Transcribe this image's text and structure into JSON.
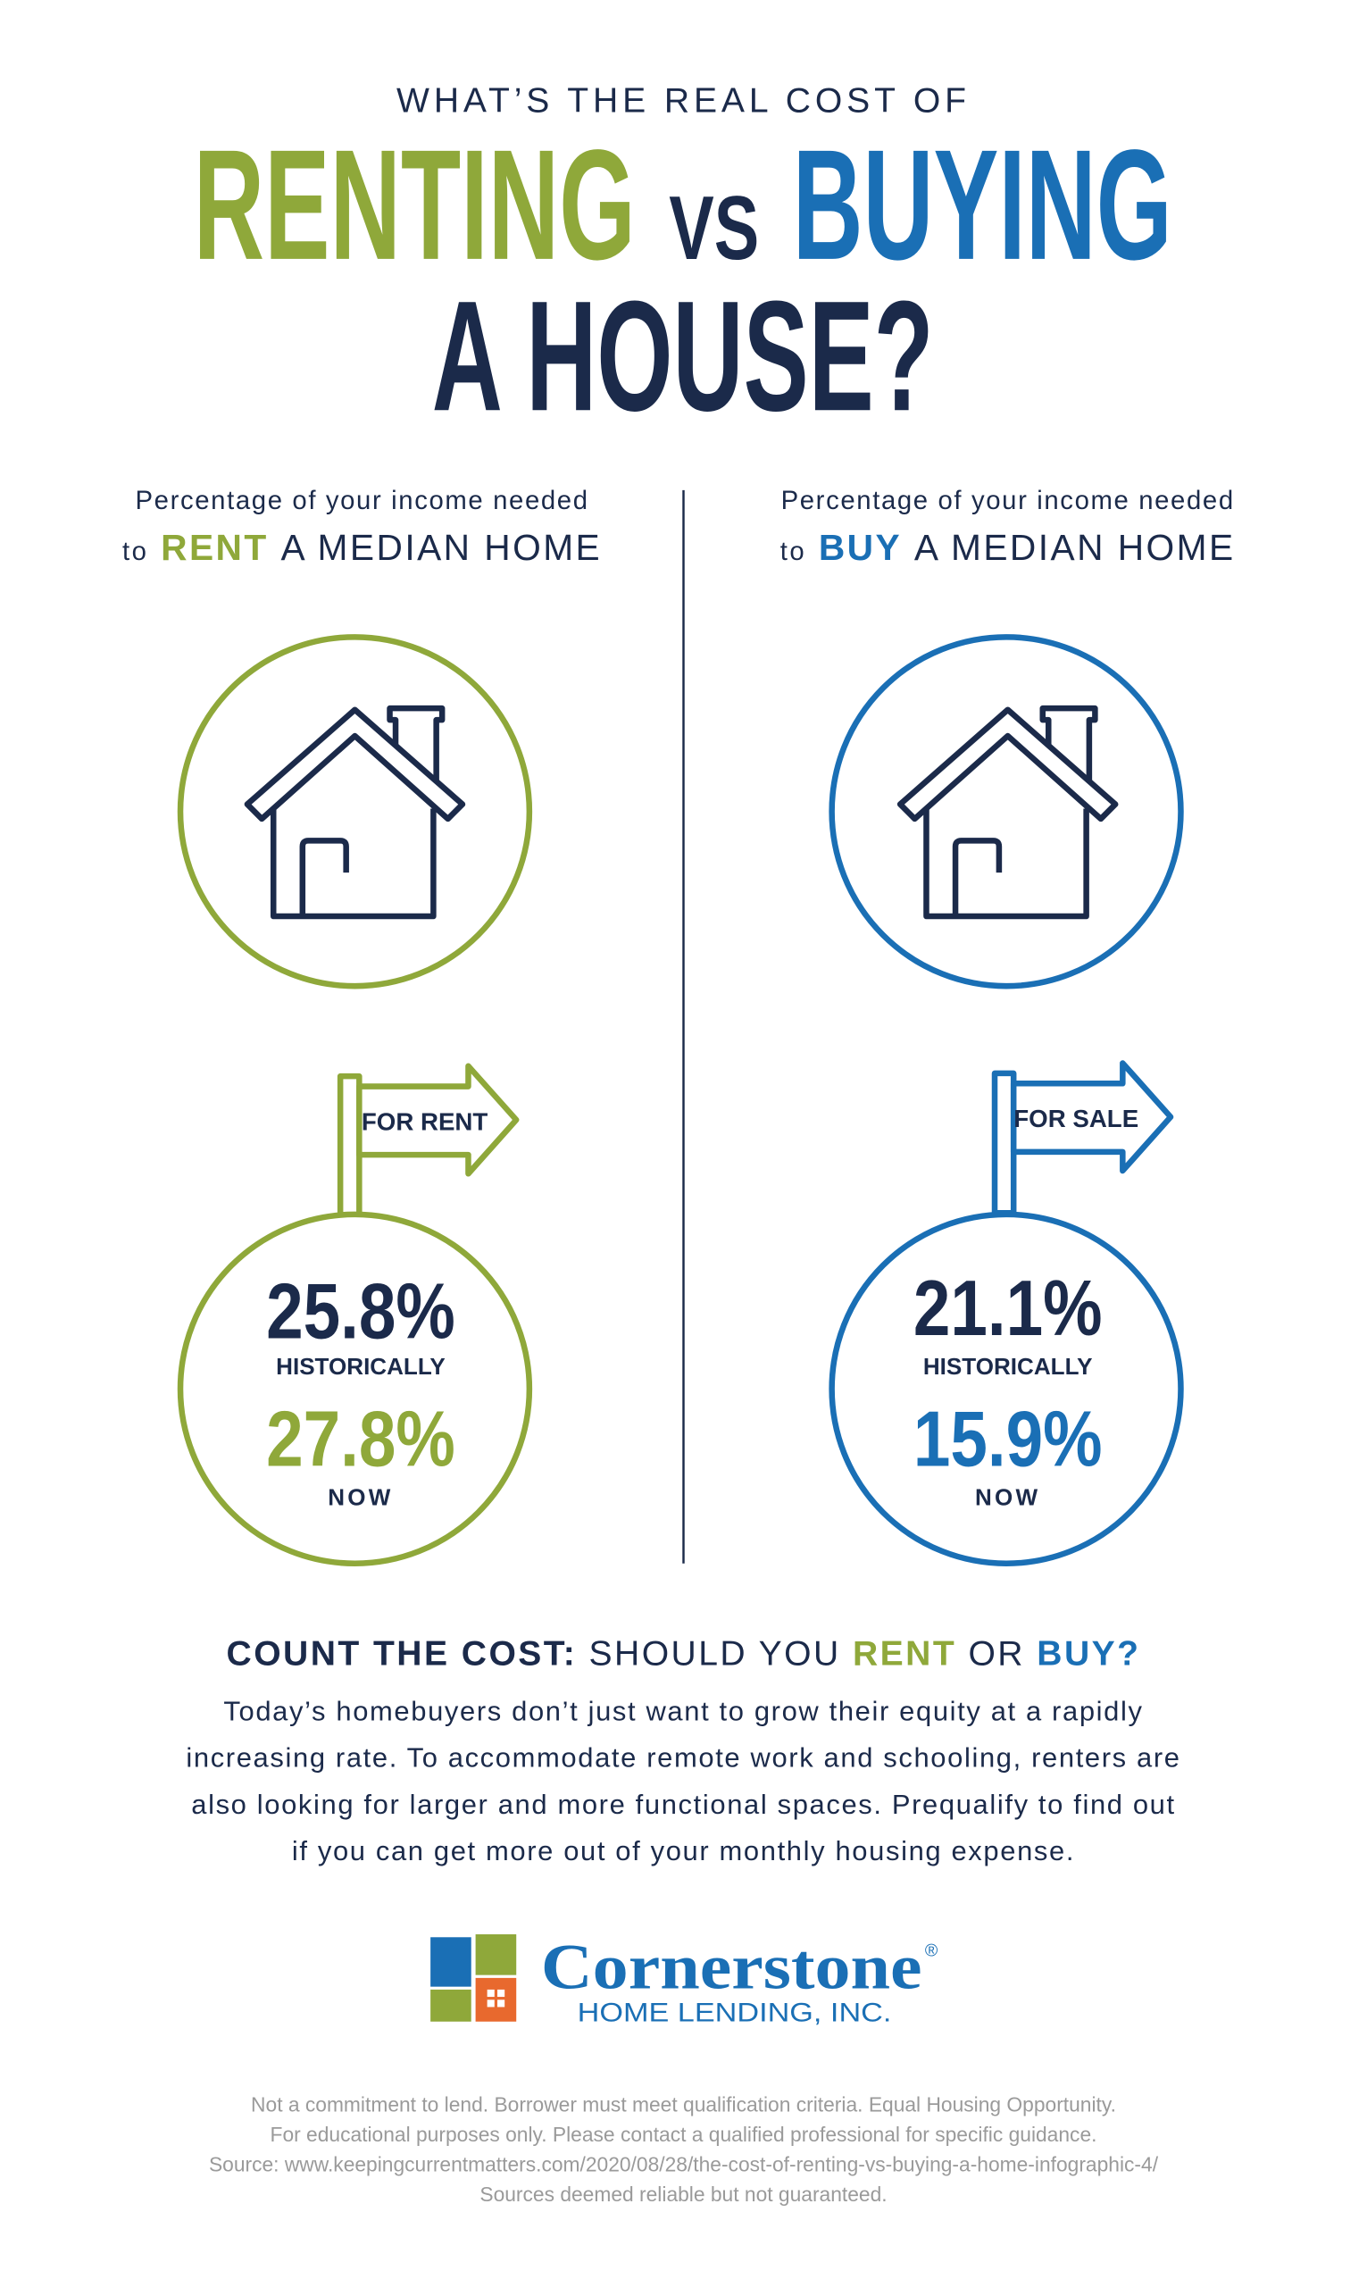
{
  "header": {
    "kicker": "WHAT’S THE REAL COST OF",
    "title_rent": "RENTING",
    "title_vs": "VS",
    "title_buy": "BUYING",
    "title_house": "A HOUSE?"
  },
  "rent": {
    "caption_line1": "Percentage of your income needed",
    "caption_to": "to",
    "caption_word": "RENT",
    "caption_rest": "A MEDIAN HOME",
    "sign": "FOR RENT",
    "historical_value": "25.8%",
    "historical_label": "HISTORICALLY",
    "now_value": "27.8%",
    "now_label": "NOW"
  },
  "buy": {
    "caption_line1": "Percentage of your income needed",
    "caption_to": "to",
    "caption_word": "BUY",
    "caption_rest": "A MEDIAN HOME",
    "sign": "FOR SALE",
    "historical_value": "21.1%",
    "historical_label": "HISTORICALLY",
    "now_value": "15.9%",
    "now_label": "NOW"
  },
  "cta": {
    "lead": "COUNT THE COST:",
    "question_start": "SHOULD YOU",
    "rent": "RENT",
    "or": "OR",
    "buy": "BUY?"
  },
  "body": {
    "lines": [
      "Today’s homebuyers don’t just want to grow their equity at a rapidly",
      "increasing rate. To accommodate remote work and schooling, renters are",
      "also looking for larger and more functional spaces. Prequalify to find out",
      "if you can get more out of your monthly housing expense."
    ]
  },
  "logo": {
    "name": "Cornerstone",
    "registered": "®",
    "subtitle": "HOME LENDING, INC."
  },
  "footer": {
    "lines": [
      "Not a commitment to lend. Borrower must meet qualification criteria. Equal Housing Opportunity.",
      "For educational purposes only. Please contact a qualified professional for specific guidance.",
      "Source: www.keepingcurrentmatters.com/2020/08/28/the-cost-of-renting-vs-buying-a-home-infographic-4/",
      "Sources deemed reliable but not guaranteed."
    ]
  }
}
